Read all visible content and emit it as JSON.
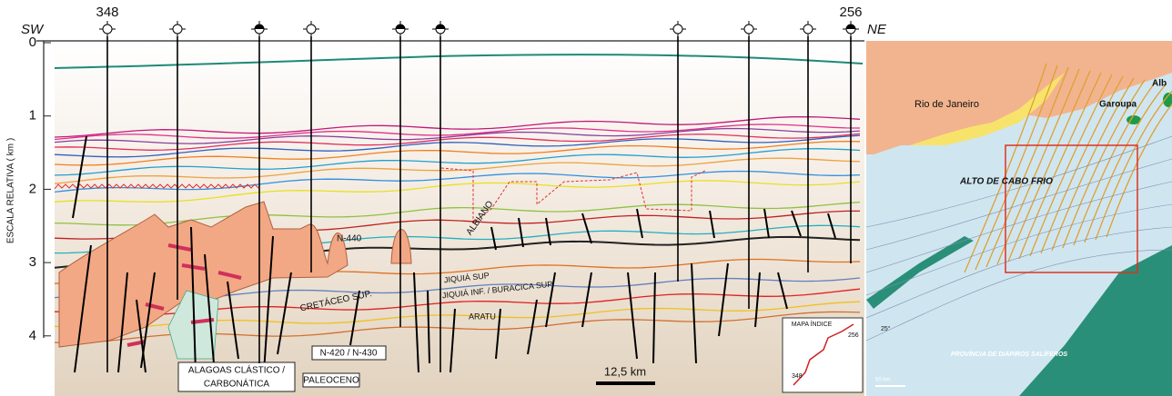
{
  "section": {
    "wells": {
      "first": "348",
      "last": "256"
    },
    "sw": "SW",
    "ne": "NE",
    "depth_axis": {
      "label": "ESCALA RELATIVA ( km )",
      "ticks": [
        0,
        1,
        2,
        3,
        4
      ]
    },
    "labels": {
      "n440": "N-440",
      "cretaceo": "CRETÁCEO SUP.",
      "albiano": "ALBIANO",
      "jiquia_sup": "JIQUIÁ SUP",
      "jiquia_inf": "JIQUIÁ INF. / BURACICA SUP.",
      "aratu": "ARATU",
      "n420": "N-420 / N-430",
      "paleoceno": "PALEOCENO",
      "alagoas": [
        "ALAGOAS CLÁSTICO /",
        "CARBONÁTICA"
      ]
    },
    "scale_bar": "12,5 km",
    "index_map": {
      "title": "MAPA ÍNDICE",
      "start": "348",
      "end": "256"
    }
  },
  "map": {
    "rio": "Rio de Janeiro",
    "garoupa": "Garoupa",
    "alb": "Alb",
    "alto": "ALTO DE CABO FRIO",
    "provincia": "PROVÍNCIA DE DIÁPIROS SALÍFEROS",
    "lat": "25°",
    "scale": "50 km"
  }
}
